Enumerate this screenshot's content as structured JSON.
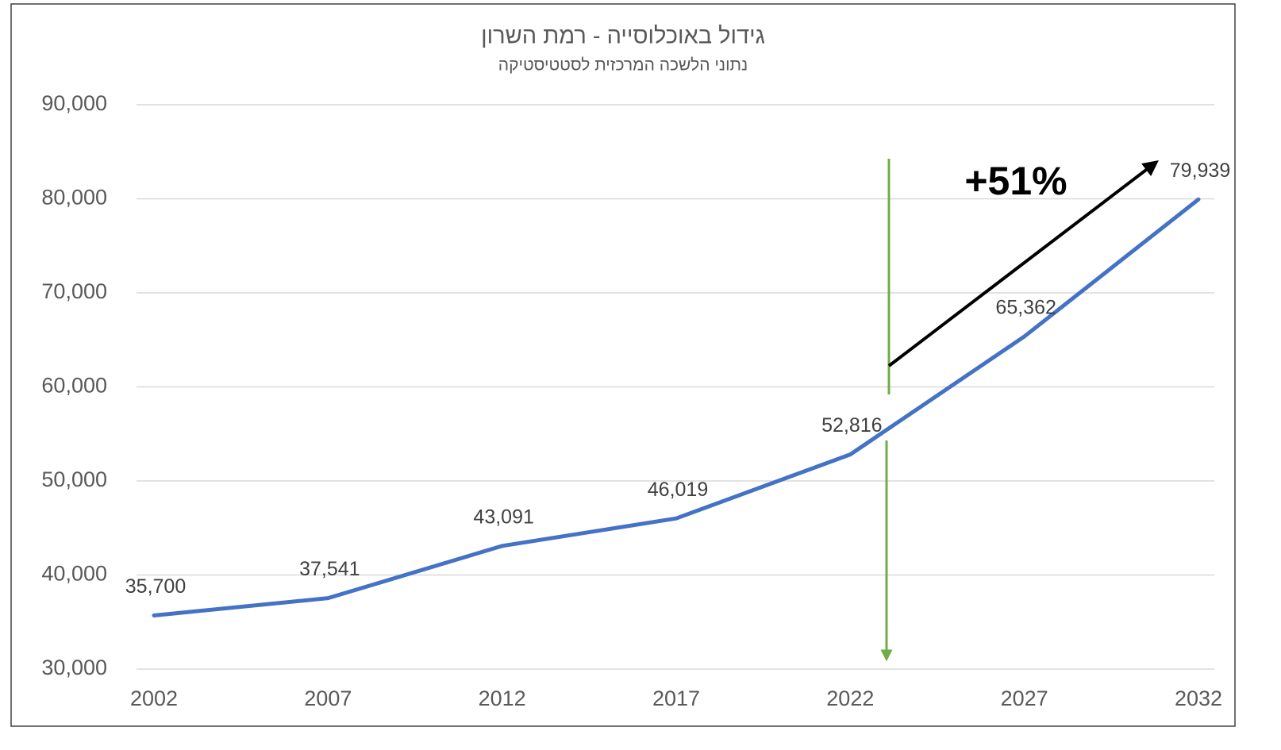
{
  "chart_data": {
    "type": "line",
    "title": "גידול באוכלוסייה - רמת השרון",
    "subtitle": "נתוני הלשכה המרכזית לסטטיסטיקה",
    "annotation": "+51%",
    "categories": [
      "2002",
      "2007",
      "2012",
      "2017",
      "2022",
      "2027",
      "2032"
    ],
    "values": [
      35700,
      37541,
      43091,
      46019,
      52816,
      65362,
      79939
    ],
    "value_labels": [
      "35,700",
      "37,541",
      "43,091",
      "46,019",
      "52,816",
      "65,362",
      "79,939"
    ],
    "color": "#4472c4",
    "ylim": [
      30000,
      90000
    ],
    "yticks": [
      {
        "value": 30000,
        "label": "30,000"
      },
      {
        "value": 40000,
        "label": "40,000"
      },
      {
        "value": 50000,
        "label": "50,000"
      },
      {
        "value": 60000,
        "label": "60,000"
      },
      {
        "value": 70000,
        "label": "70,000"
      },
      {
        "value": 80000,
        "label": "80,000"
      },
      {
        "value": 90000,
        "label": "90,000"
      }
    ],
    "grid": true
  }
}
